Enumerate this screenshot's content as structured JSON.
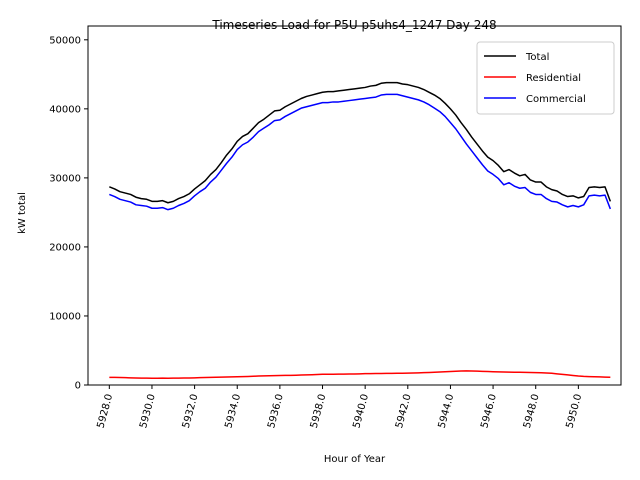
{
  "chart_data": {
    "type": "line",
    "title": "Timeseries Load for P5U p5uhs4_1247  Day 248",
    "xlabel": "Hour of Year",
    "ylabel": "kW total",
    "xlim": [
      5927.0,
      5952.0
    ],
    "ylim": [
      0,
      52000
    ],
    "xticks": [
      5928,
      5930,
      5932,
      5934,
      5936,
      5938,
      5940,
      5942,
      5944,
      5946,
      5948,
      5950
    ],
    "xtick_labels": [
      "5928.0",
      "5930.0",
      "5932.0",
      "5934.0",
      "5936.0",
      "5938.0",
      "5940.0",
      "5942.0",
      "5944.0",
      "5946.0",
      "5948.0",
      "5950.0"
    ],
    "yticks": [
      0,
      10000,
      20000,
      30000,
      40000,
      50000
    ],
    "ytick_labels": [
      "0",
      "10000",
      "20000",
      "30000",
      "40000",
      "50000"
    ],
    "legend_position": "top-right",
    "x": [
      5928.0,
      5928.25,
      5928.5,
      5928.75,
      5929.0,
      5929.25,
      5929.5,
      5929.75,
      5930.0,
      5930.25,
      5930.5,
      5930.75,
      5931.0,
      5931.25,
      5931.5,
      5931.75,
      5932.0,
      5932.25,
      5932.5,
      5932.75,
      5933.0,
      5933.25,
      5933.5,
      5933.75,
      5934.0,
      5934.25,
      5934.5,
      5934.75,
      5935.0,
      5935.25,
      5935.5,
      5935.75,
      5936.0,
      5936.25,
      5936.5,
      5936.75,
      5937.0,
      5937.25,
      5937.5,
      5937.75,
      5938.0,
      5938.25,
      5938.5,
      5938.75,
      5939.0,
      5939.25,
      5939.5,
      5939.75,
      5940.0,
      5940.25,
      5940.5,
      5940.75,
      5941.0,
      5941.25,
      5941.5,
      5941.75,
      5942.0,
      5942.25,
      5942.5,
      5942.75,
      5943.0,
      5943.25,
      5943.5,
      5943.75,
      5944.0,
      5944.25,
      5944.5,
      5944.75,
      5945.0,
      5945.25,
      5945.5,
      5945.75,
      5946.0,
      5946.25,
      5946.5,
      5946.75,
      5947.0,
      5947.25,
      5947.5,
      5947.75,
      5948.0,
      5948.25,
      5948.5,
      5948.75,
      5949.0,
      5949.25,
      5949.5,
      5949.75,
      5950.0,
      5950.25,
      5950.5,
      5950.75,
      5951.0,
      5951.25,
      5951.5
    ],
    "series": [
      {
        "name": "Total",
        "color": "#000000",
        "values": [
          28700,
          28400,
          28000,
          27800,
          27600,
          27200,
          27000,
          26900,
          26600,
          26600,
          26700,
          26400,
          26600,
          27000,
          27300,
          27700,
          28400,
          29000,
          29600,
          30500,
          31200,
          32200,
          33300,
          34200,
          35300,
          36000,
          36400,
          37200,
          38000,
          38500,
          39100,
          39700,
          39800,
          40300,
          40700,
          41100,
          41500,
          41800,
          42000,
          42200,
          42400,
          42500,
          42500,
          42600,
          42700,
          42800,
          42900,
          43000,
          43100,
          43300,
          43400,
          43700,
          43800,
          43800,
          43800,
          43600,
          43500,
          43300,
          43100,
          42800,
          42400,
          42000,
          41500,
          40800,
          40000,
          39100,
          38000,
          37000,
          35900,
          34900,
          33900,
          33000,
          32500,
          31800,
          30900,
          31200,
          30700,
          30300,
          30500,
          29700,
          29400,
          29400,
          28700,
          28300,
          28100,
          27600,
          27300,
          27400,
          27100,
          27300,
          28600,
          28700,
          28600,
          28700,
          26600
        ]
      },
      {
        "name": "Residential",
        "color": "#ff0000",
        "values": [
          1100,
          1100,
          1080,
          1060,
          1040,
          1020,
          1000,
          990,
          980,
          980,
          990,
          970,
          990,
          1000,
          1010,
          1020,
          1040,
          1060,
          1080,
          1100,
          1120,
          1140,
          1160,
          1180,
          1200,
          1220,
          1240,
          1270,
          1300,
          1320,
          1340,
          1360,
          1380,
          1390,
          1400,
          1420,
          1440,
          1460,
          1490,
          1520,
          1550,
          1560,
          1560,
          1570,
          1580,
          1590,
          1600,
          1620,
          1640,
          1650,
          1660,
          1670,
          1680,
          1690,
          1700,
          1710,
          1720,
          1740,
          1760,
          1790,
          1820,
          1850,
          1880,
          1920,
          1960,
          2000,
          2030,
          2040,
          2030,
          2010,
          1980,
          1950,
          1920,
          1900,
          1880,
          1860,
          1850,
          1840,
          1830,
          1820,
          1800,
          1780,
          1740,
          1700,
          1620,
          1540,
          1460,
          1380,
          1300,
          1250,
          1220,
          1200,
          1170,
          1140,
          1120
        ]
      },
      {
        "name": "Commercial",
        "color": "#0000ff",
        "values": [
          27600,
          27300,
          26900,
          26700,
          26500,
          26100,
          26000,
          25900,
          25600,
          25600,
          25700,
          25400,
          25600,
          26000,
          26300,
          26700,
          27400,
          28000,
          28500,
          29400,
          30100,
          31100,
          32100,
          33000,
          34100,
          34800,
          35200,
          35900,
          36700,
          37200,
          37700,
          38300,
          38400,
          38900,
          39300,
          39700,
          40100,
          40300,
          40500,
          40700,
          40900,
          40900,
          41000,
          41000,
          41100,
          41200,
          41300,
          41400,
          41500,
          41600,
          41700,
          42000,
          42100,
          42100,
          42100,
          41900,
          41700,
          41500,
          41300,
          41000,
          40600,
          40100,
          39600,
          38900,
          38000,
          37100,
          36000,
          34900,
          33900,
          32900,
          31900,
          31000,
          30500,
          29900,
          29000,
          29300,
          28800,
          28500,
          28600,
          27900,
          27600,
          27600,
          27000,
          26600,
          26500,
          26100,
          25800,
          26000,
          25800,
          26100,
          27400,
          27500,
          27400,
          27500,
          25500
        ]
      }
    ]
  }
}
